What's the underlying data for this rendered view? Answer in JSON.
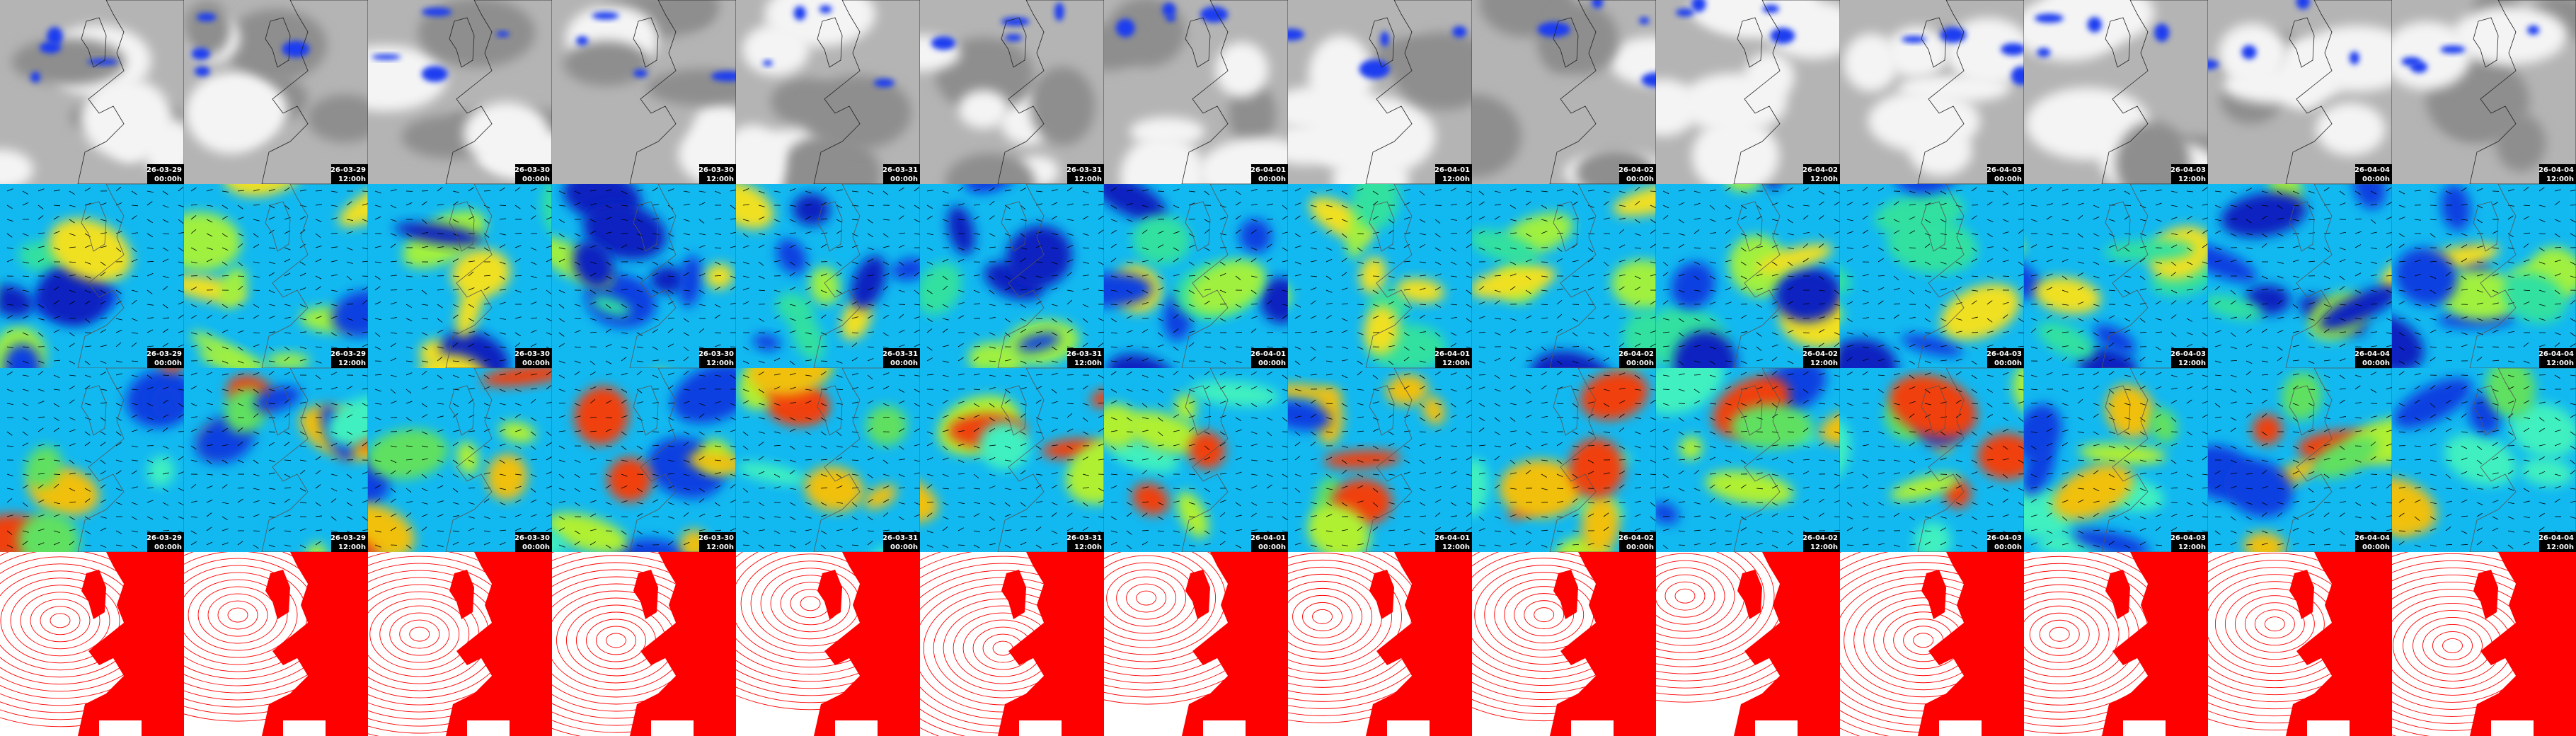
{
  "columns": [
    {
      "date": "26-03-29",
      "time": "00:00h"
    },
    {
      "date": "26-03-29",
      "time": "12:00h"
    },
    {
      "date": "26-03-30",
      "time": "00:00h"
    },
    {
      "date": "26-03-30",
      "time": "12:00h"
    },
    {
      "date": "26-03-31",
      "time": "00:00h"
    },
    {
      "date": "26-03-31",
      "time": "12:00h"
    },
    {
      "date": "26-04-01",
      "time": "00:00h"
    },
    {
      "date": "26-04-01",
      "time": "12:00h"
    },
    {
      "date": "26-04-02",
      "time": "00:00h"
    },
    {
      "date": "26-04-02",
      "time": "12:00h"
    },
    {
      "date": "26-04-03",
      "time": "00:00h"
    },
    {
      "date": "26-04-03",
      "time": "12:00h"
    },
    {
      "date": "26-04-04",
      "time": "00:00h"
    },
    {
      "date": "26-04-04",
      "time": "12:00h"
    }
  ]
}
